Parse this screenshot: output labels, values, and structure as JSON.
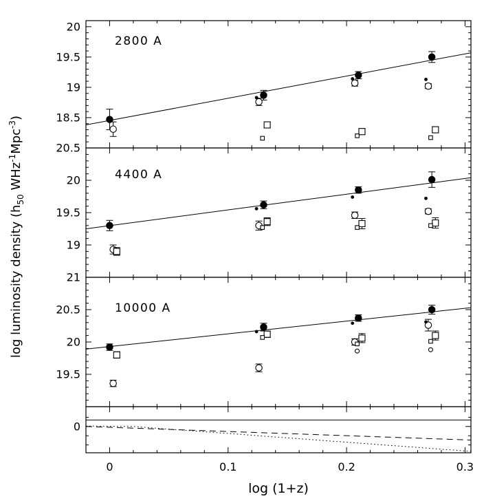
{
  "figure": {
    "xlabel": "log (1+z)",
    "ylabel_parts": [
      {
        "text": "log luminosity density (h"
      },
      {
        "text": "50",
        "script": "sub"
      },
      {
        "text": " WHz",
        "script": "normal"
      },
      {
        "text": "-1",
        "script": "sup"
      },
      {
        "text": "Mpc",
        "script": "normal"
      },
      {
        "text": "-3",
        "script": "sup"
      },
      {
        "text": ")",
        "script": "normal"
      }
    ],
    "xlim": [
      -0.02,
      0.305
    ],
    "xticks": [
      0,
      0.1,
      0.2,
      0.3
    ],
    "x_tick_labels": [
      "0",
      "0.1",
      "0.2",
      "0.3"
    ],
    "colors": {
      "foreground": "#000000",
      "background": "#ffffff"
    }
  },
  "chart_data": [
    {
      "type": "scatter",
      "panel_id": "2800A",
      "panel_label": "2800 A",
      "ylim": [
        18.0,
        20.1
      ],
      "yticks": [
        18.5,
        19,
        19.5,
        20
      ],
      "fit_line": {
        "x": [
          -0.02,
          0.305
        ],
        "y": [
          18.38,
          19.57
        ]
      },
      "series": [
        {
          "name": "filled-circle",
          "marker": "circle",
          "open": false,
          "size": "large",
          "x": [
            0.0,
            0.13,
            0.21,
            0.272
          ],
          "y": [
            18.47,
            18.87,
            19.2,
            19.5
          ],
          "yerr": [
            0.17,
            0.08,
            0.06,
            0.09
          ]
        },
        {
          "name": "open-circle",
          "marker": "circle",
          "open": true,
          "size": "large",
          "x": [
            0.003,
            0.126,
            0.207,
            0.269
          ],
          "y": [
            18.31,
            18.76,
            19.07,
            19.02
          ],
          "yerr": [
            0.12,
            0.06,
            0.05,
            0.04
          ]
        },
        {
          "name": "small-dot",
          "marker": "dot",
          "open": false,
          "size": "small",
          "x": [
            0.124,
            0.205,
            0.267
          ],
          "y": [
            18.83,
            19.14,
            19.13
          ]
        },
        {
          "name": "open-square",
          "marker": "square",
          "open": true,
          "size": "large",
          "x": [
            0.133,
            0.213,
            0.275
          ],
          "y": [
            18.38,
            18.27,
            18.3
          ],
          "yerr": [
            0.05,
            0.05,
            0.05
          ]
        },
        {
          "name": "small-square",
          "marker": "square",
          "open": true,
          "size": "small",
          "x": [
            0.129,
            0.209,
            0.271
          ],
          "y": [
            18.16,
            18.2,
            18.17
          ]
        }
      ]
    },
    {
      "type": "scatter",
      "panel_id": "4400A",
      "panel_label": "4400 A",
      "ylim": [
        18.5,
        20.5
      ],
      "yticks": [
        19,
        19.5,
        20,
        20.5
      ],
      "fit_line": {
        "x": [
          -0.02,
          0.305
        ],
        "y": [
          19.25,
          20.04
        ]
      },
      "series": [
        {
          "name": "filled-circle",
          "marker": "circle",
          "open": false,
          "size": "large",
          "x": [
            0.0,
            0.13,
            0.21,
            0.272
          ],
          "y": [
            19.3,
            19.62,
            19.85,
            20.01
          ],
          "yerr": [
            0.08,
            0.06,
            0.05,
            0.12
          ]
        },
        {
          "name": "open-circle",
          "marker": "circle",
          "open": true,
          "size": "large",
          "x": [
            0.003,
            0.126,
            0.207,
            0.269
          ],
          "y": [
            18.93,
            19.3,
            19.46,
            19.52
          ],
          "yerr": [
            0.07,
            0.07,
            0.05,
            0.04
          ]
        },
        {
          "name": "small-dot",
          "marker": "dot",
          "open": false,
          "size": "small",
          "x": [
            0.124,
            0.205,
            0.267
          ],
          "y": [
            19.56,
            19.74,
            19.72
          ]
        },
        {
          "name": "open-square",
          "marker": "square",
          "open": true,
          "size": "large",
          "x": [
            0.006,
            0.133,
            0.213,
            0.275
          ],
          "y": [
            18.9,
            19.36,
            19.33,
            19.34
          ],
          "yerr": [
            0.06,
            0.06,
            0.08,
            0.08
          ]
        },
        {
          "name": "small-square",
          "marker": "square",
          "open": true,
          "size": "small",
          "x": [
            0.129,
            0.209,
            0.271
          ],
          "y": [
            19.27,
            19.27,
            19.3
          ]
        }
      ]
    },
    {
      "type": "scatter",
      "panel_id": "10000A",
      "panel_label": "10000 A",
      "ylim": [
        19.0,
        21.0
      ],
      "yticks": [
        19.5,
        20,
        20.5,
        21
      ],
      "fit_line": {
        "x": [
          -0.02,
          0.305
        ],
        "y": [
          19.89,
          20.53
        ]
      },
      "series": [
        {
          "name": "filled-circle",
          "marker": "circle",
          "open": false,
          "size": "large",
          "x": [
            0.0,
            0.13,
            0.21,
            0.272
          ],
          "y": [
            19.92,
            20.23,
            20.37,
            20.5
          ],
          "yerr": [
            0.05,
            0.06,
            0.05,
            0.07
          ]
        },
        {
          "name": "open-circle",
          "marker": "circle",
          "open": true,
          "size": "large",
          "x": [
            0.003,
            0.126,
            0.207,
            0.269
          ],
          "y": [
            19.36,
            19.6,
            20.0,
            20.26
          ],
          "yerr": [
            0.05,
            0.06,
            0.05,
            0.09
          ]
        },
        {
          "name": "small-dot",
          "marker": "dot",
          "open": false,
          "size": "small",
          "x": [
            0.124,
            0.205,
            0.267
          ],
          "y": [
            20.16,
            20.29,
            20.31
          ]
        },
        {
          "name": "open-square",
          "marker": "square",
          "open": true,
          "size": "large",
          "x": [
            0.006,
            0.133,
            0.213,
            0.275
          ],
          "y": [
            19.8,
            20.12,
            20.06,
            20.1
          ],
          "yerr": [
            0.05,
            0.05,
            0.07,
            0.07
          ]
        },
        {
          "name": "small-square",
          "marker": "square",
          "open": true,
          "size": "small",
          "x": [
            0.129,
            0.209,
            0.271
          ],
          "y": [
            20.07,
            19.97,
            20.01
          ]
        },
        {
          "name": "small-open-circle",
          "marker": "circle",
          "open": true,
          "size": "small",
          "x": [
            0.209,
            0.271
          ],
          "y": [
            19.86,
            19.88
          ]
        }
      ]
    },
    {
      "type": "line",
      "panel_id": "corrections",
      "panel_label": "",
      "ylim": [
        -0.285,
        0.215
      ],
      "yticks": [
        0
      ],
      "lines": [
        {
          "name": "solid-horizontal",
          "style": "solid",
          "x": [
            -0.02,
            0.305
          ],
          "y": [
            0.07,
            0.07
          ]
        },
        {
          "name": "dashed-declining",
          "style": "dashed",
          "x": [
            -0.02,
            0.305
          ],
          "y": [
            0.0,
            -0.147
          ]
        },
        {
          "name": "dotted-declining",
          "style": "dotted",
          "x": [
            -0.02,
            0.02,
            0.305
          ],
          "y": [
            0.005,
            0.0,
            -0.27
          ]
        }
      ]
    }
  ]
}
